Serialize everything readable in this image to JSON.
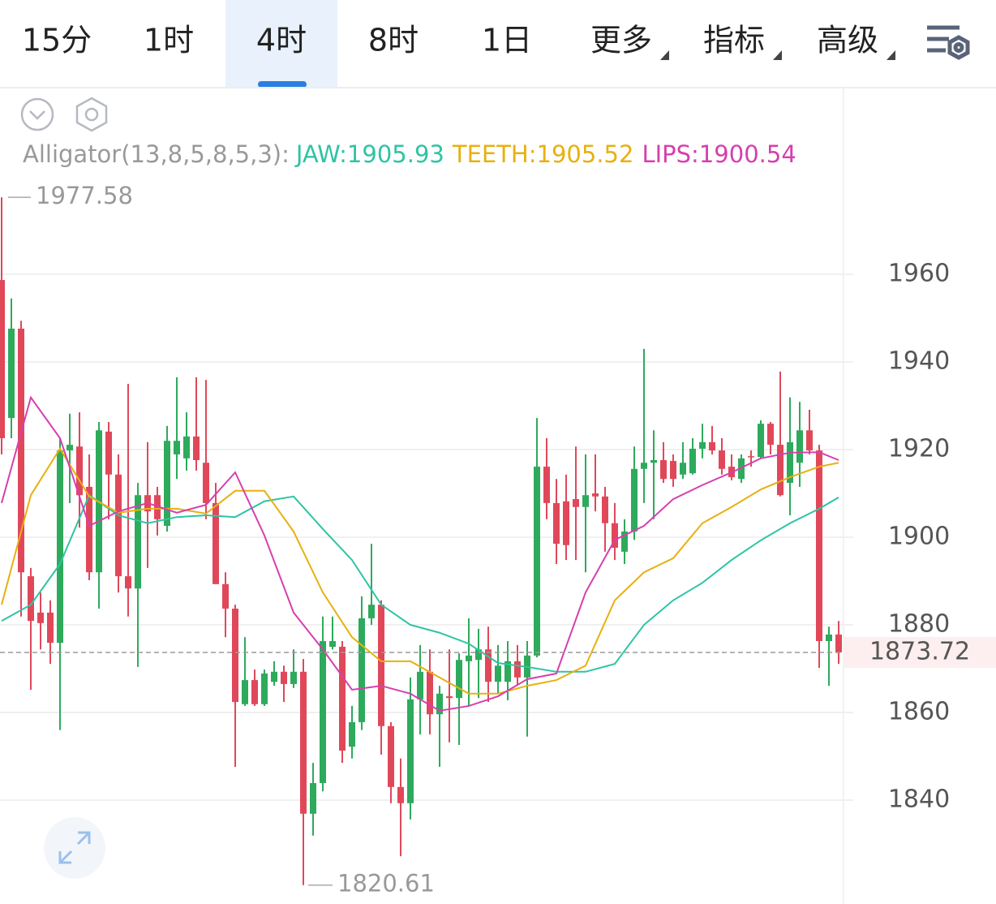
{
  "tabs": [
    "15分",
    "1时",
    "4时",
    "8时",
    "1日"
  ],
  "active_tab": 2,
  "dropdowns": [
    "更多",
    "指标",
    "高级"
  ],
  "chart_data": {
    "type": "candlestick",
    "open": [
      1958.7,
      1927.2,
      1947.6,
      1891.1,
      1882.8,
      1882.8,
      1875.9,
      1919.8,
      1920.7,
      1911.5,
      1892.0,
      1924.1,
      1914.3,
      1891.1,
      1888.3,
      1909.6,
      1909.6,
      1902.6,
      1918.9,
      1918.0,
      1923.0,
      1917.0,
      1907.8,
      1889.3,
      1883.7,
      1861.9,
      1867.4,
      1861.9,
      1867.0,
      1869.3,
      1866.5,
      1869.3,
      1836.9,
      1843.9,
      1875.0,
      1875.0,
      1852.2,
      1857.8,
      1881.5,
      1884.6,
      1856.9,
      1843.0,
      1839.3,
      1863.0,
      1869.3,
      1859.6,
      1863.7,
      1863.3,
      1871.7,
      1872.0,
      1874.4,
      1867.0,
      1867.0,
      1871.7,
      1868.0,
      1873.0,
      1916.1,
      1907.8,
      1908.2,
      1908.7,
      1906.9,
      1910.0,
      1909.3,
      1903.2,
      1896.7,
      1901.3,
      1915.6,
      1917.0,
      1917.6,
      1917.4,
      1914.3,
      1914.6,
      1920.2,
      1921.7,
      1919.8,
      1916.1,
      1913.3,
      1918.5,
      1918.3,
      1925.9,
      1921.1,
      1912.4,
      1917.0,
      1924.4,
      1919.8,
      1876.3,
      1877.8
    ],
    "high": [
      1977.58,
      1954.5,
      1949.4,
      1893.0,
      1887.4,
      1885.6,
      1922.6,
      1928.2,
      1928.5,
      1918.9,
      1926.3,
      1926.3,
      1918.9,
      1935.0,
      1912.4,
      1921.7,
      1911.5,
      1925.4,
      1936.5,
      1928.5,
      1936.5,
      1935.9,
      1912.4,
      1892.0,
      1884.6,
      1877.2,
      1869.8,
      1869.8,
      1871.7,
      1870.7,
      1874.4,
      1872.2,
      1848.5,
      1881.9,
      1881.9,
      1876.3,
      1861.5,
      1886.5,
      1898.5,
      1885.6,
      1857.8,
      1849.5,
      1868.0,
      1875.4,
      1874.4,
      1866.1,
      1874.4,
      1873.5,
      1881.5,
      1879.1,
      1879.6,
      1875.4,
      1876.3,
      1875.4,
      1876.3,
      1927.2,
      1922.6,
      1913.3,
      1914.3,
      1920.7,
      1918.9,
      1918.9,
      1911.5,
      1907.8,
      1904.1,
      1920.7,
      1943.0,
      1924.4,
      1921.7,
      1918.9,
      1921.7,
      1922.6,
      1925.9,
      1925.4,
      1922.6,
      1918.9,
      1918.9,
      1919.8,
      1926.7,
      1926.3,
      1937.8,
      1931.9,
      1930.9,
      1929.1,
      1921.1,
      1879.6,
      1880.9
    ],
    "low": [
      1918.9,
      1922.6,
      1881.9,
      1865.2,
      1874.4,
      1871.1,
      1856.0,
      1907.8,
      1902.2,
      1890.2,
      1883.7,
      1904.1,
      1887.4,
      1881.9,
      1870.4,
      1893.0,
      1900.4,
      1901.3,
      1913.3,
      1915.2,
      1915.2,
      1904.1,
      1889.3,
      1877.2,
      1847.6,
      1861.5,
      1861.5,
      1861.5,
      1866.1,
      1862.4,
      1865.6,
      1820.61,
      1831.9,
      1842.0,
      1874.4,
      1848.5,
      1849.5,
      1856.0,
      1880.0,
      1850.4,
      1839.3,
      1827.2,
      1835.6,
      1855.0,
      1855.0,
      1847.6,
      1853.2,
      1852.6,
      1861.5,
      1863.3,
      1862.4,
      1864.3,
      1862.8,
      1866.1,
      1854.5,
      1872.6,
      1904.1,
      1893.9,
      1894.8,
      1894.8,
      1892.0,
      1905.9,
      1896.7,
      1894.8,
      1893.9,
      1899.4,
      1907.8,
      1904.1,
      1912.4,
      1911.5,
      1913.3,
      1914.3,
      1918.0,
      1918.9,
      1914.3,
      1913.0,
      1912.4,
      1916.1,
      1918.0,
      1918.9,
      1909.3,
      1905.0,
      1911.5,
      1918.9,
      1870.2,
      1866.1,
      1871.1
    ],
    "close": [
      1922.6,
      1947.6,
      1892.0,
      1880.9,
      1880.4,
      1875.9,
      1919.8,
      1921.1,
      1909.6,
      1892.0,
      1924.4,
      1914.3,
      1891.1,
      1888.3,
      1909.6,
      1905.9,
      1904.1,
      1922.0,
      1922.0,
      1923.0,
      1917.6,
      1907.8,
      1889.3,
      1883.7,
      1862.4,
      1867.4,
      1861.9,
      1868.9,
      1869.3,
      1866.5,
      1869.3,
      1836.9,
      1843.9,
      1876.3,
      1876.3,
      1851.3,
      1857.8,
      1881.5,
      1884.6,
      1856.9,
      1843.0,
      1839.3,
      1863.0,
      1869.3,
      1859.6,
      1864.3,
      1863.3,
      1872.0,
      1873.0,
      1874.4,
      1867.0,
      1870.7,
      1871.7,
      1868.0,
      1873.0,
      1916.1,
      1907.8,
      1898.5,
      1898.2,
      1906.9,
      1909.6,
      1909.3,
      1903.2,
      1897.6,
      1901.3,
      1915.6,
      1917.0,
      1917.6,
      1913.3,
      1913.3,
      1917.0,
      1920.2,
      1921.7,
      1919.8,
      1915.6,
      1913.7,
      1918.0,
      1918.3,
      1925.9,
      1921.1,
      1909.6,
      1921.7,
      1924.4,
      1919.8,
      1876.3,
      1877.8,
      1873.72
    ],
    "up_color": "#2eaa5c",
    "down_color": "#e0485a",
    "ylim": [
      1816.3,
      2002.6
    ],
    "yticks": [
      1840,
      1860,
      1880,
      1900,
      1920,
      1940,
      1960
    ],
    "grid": true,
    "indicator": {
      "label": "Alligator(13,8,5,8,5,3):",
      "x": [
        0,
        3,
        6,
        9,
        12,
        15,
        18,
        21,
        24,
        27,
        30,
        33,
        36,
        39,
        42,
        45,
        48,
        51,
        54,
        57,
        60,
        63,
        66,
        69,
        72,
        75,
        78,
        81,
        84,
        86
      ],
      "lines": [
        {
          "label": "JAW:",
          "last": 1905.93,
          "color": "#2ec4a4",
          "values": [
            1880.9,
            1884.6,
            1893.9,
            1909.6,
            1905.0,
            1903.2,
            1904.6,
            1905.0,
            1904.6,
            1908.2,
            1909.3,
            1901.9,
            1894.8,
            1884.6,
            1880.0,
            1878.2,
            1875.7,
            1871.3,
            1870.4,
            1869.3,
            1869.3,
            1871.1,
            1880.0,
            1885.6,
            1889.6,
            1894.8,
            1899.3,
            1903.2,
            1906.5,
            1909.1
          ]
        },
        {
          "label": "TEETH:",
          "last": 1905.52,
          "color": "#e8b010",
          "values": [
            1884.6,
            1909.6,
            1920.2,
            1909.3,
            1905.6,
            1906.5,
            1906.5,
            1905.4,
            1910.6,
            1910.6,
            1901.3,
            1887.4,
            1877.2,
            1871.7,
            1871.7,
            1868.0,
            1864.3,
            1864.3,
            1866.1,
            1867.4,
            1870.7,
            1885.6,
            1892.0,
            1895.2,
            1903.2,
            1906.9,
            1910.9,
            1913.7,
            1916.1,
            1917.0
          ]
        },
        {
          "label": "LIPS:",
          "last": 1900.54,
          "color": "#d63fae",
          "values": [
            1907.8,
            1931.9,
            1922.6,
            1902.6,
            1905.9,
            1907.8,
            1905.6,
            1907.4,
            1914.8,
            1900.4,
            1882.8,
            1874.4,
            1865.2,
            1866.1,
            1864.3,
            1860.4,
            1861.5,
            1863.7,
            1867.6,
            1868.9,
            1887.4,
            1899.4,
            1902.6,
            1908.7,
            1911.9,
            1914.8,
            1918.0,
            1919.3,
            1919.4,
            1917.6
          ]
        }
      ]
    }
  }
}
